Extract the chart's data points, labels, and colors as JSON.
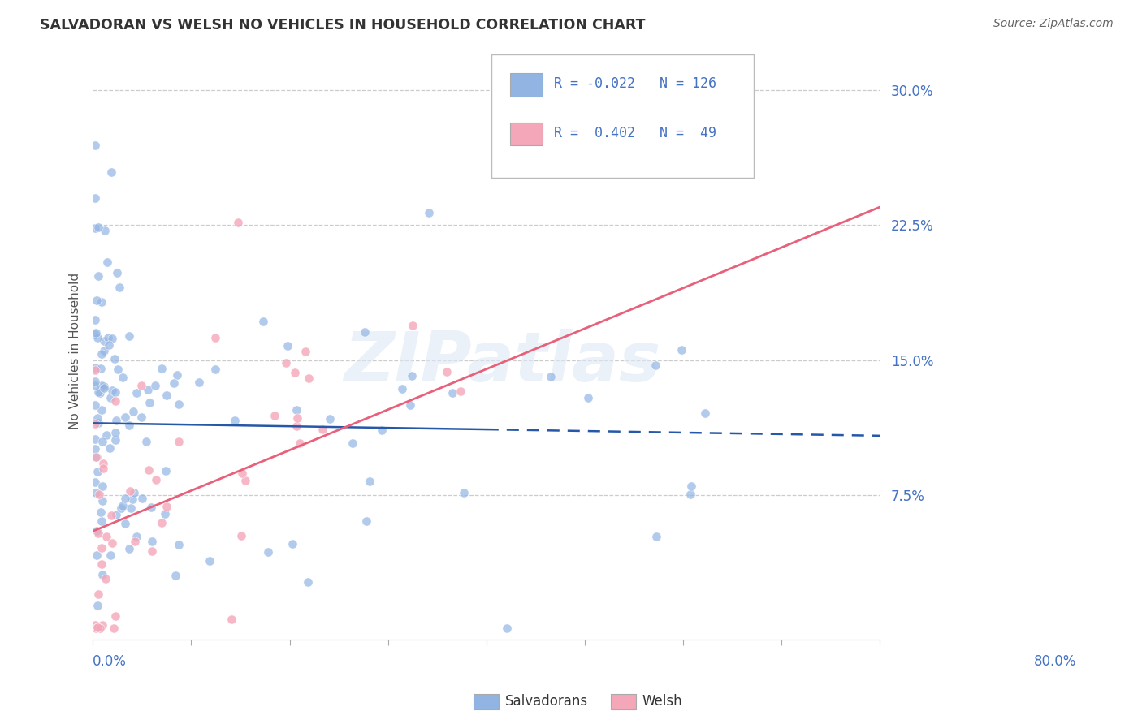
{
  "title": "SALVADORAN VS WELSH NO VEHICLES IN HOUSEHOLD CORRELATION CHART",
  "source": "Source: ZipAtlas.com",
  "ylabel": "No Vehicles in Household",
  "yticks": [
    "7.5%",
    "15.0%",
    "22.5%",
    "30.0%"
  ],
  "ytick_vals": [
    0.075,
    0.15,
    0.225,
    0.3
  ],
  "xlim": [
    0.0,
    0.8
  ],
  "ylim": [
    -0.005,
    0.315
  ],
  "watermark": "ZIPatlas",
  "blue_color": "#92b4e3",
  "pink_color": "#f4a7b9",
  "blue_line_color": "#2657a8",
  "pink_line_color": "#e8617a",
  "legend_R_sal": "-0.022",
  "legend_N_sal": "126",
  "legend_R_welsh": "0.402",
  "legend_N_welsh": "49",
  "sal_line_solid_end": 0.4,
  "sal_line_start_y": 0.115,
  "sal_line_end_y": 0.108,
  "welsh_line_start_y": 0.055,
  "welsh_line_end_y": 0.235
}
